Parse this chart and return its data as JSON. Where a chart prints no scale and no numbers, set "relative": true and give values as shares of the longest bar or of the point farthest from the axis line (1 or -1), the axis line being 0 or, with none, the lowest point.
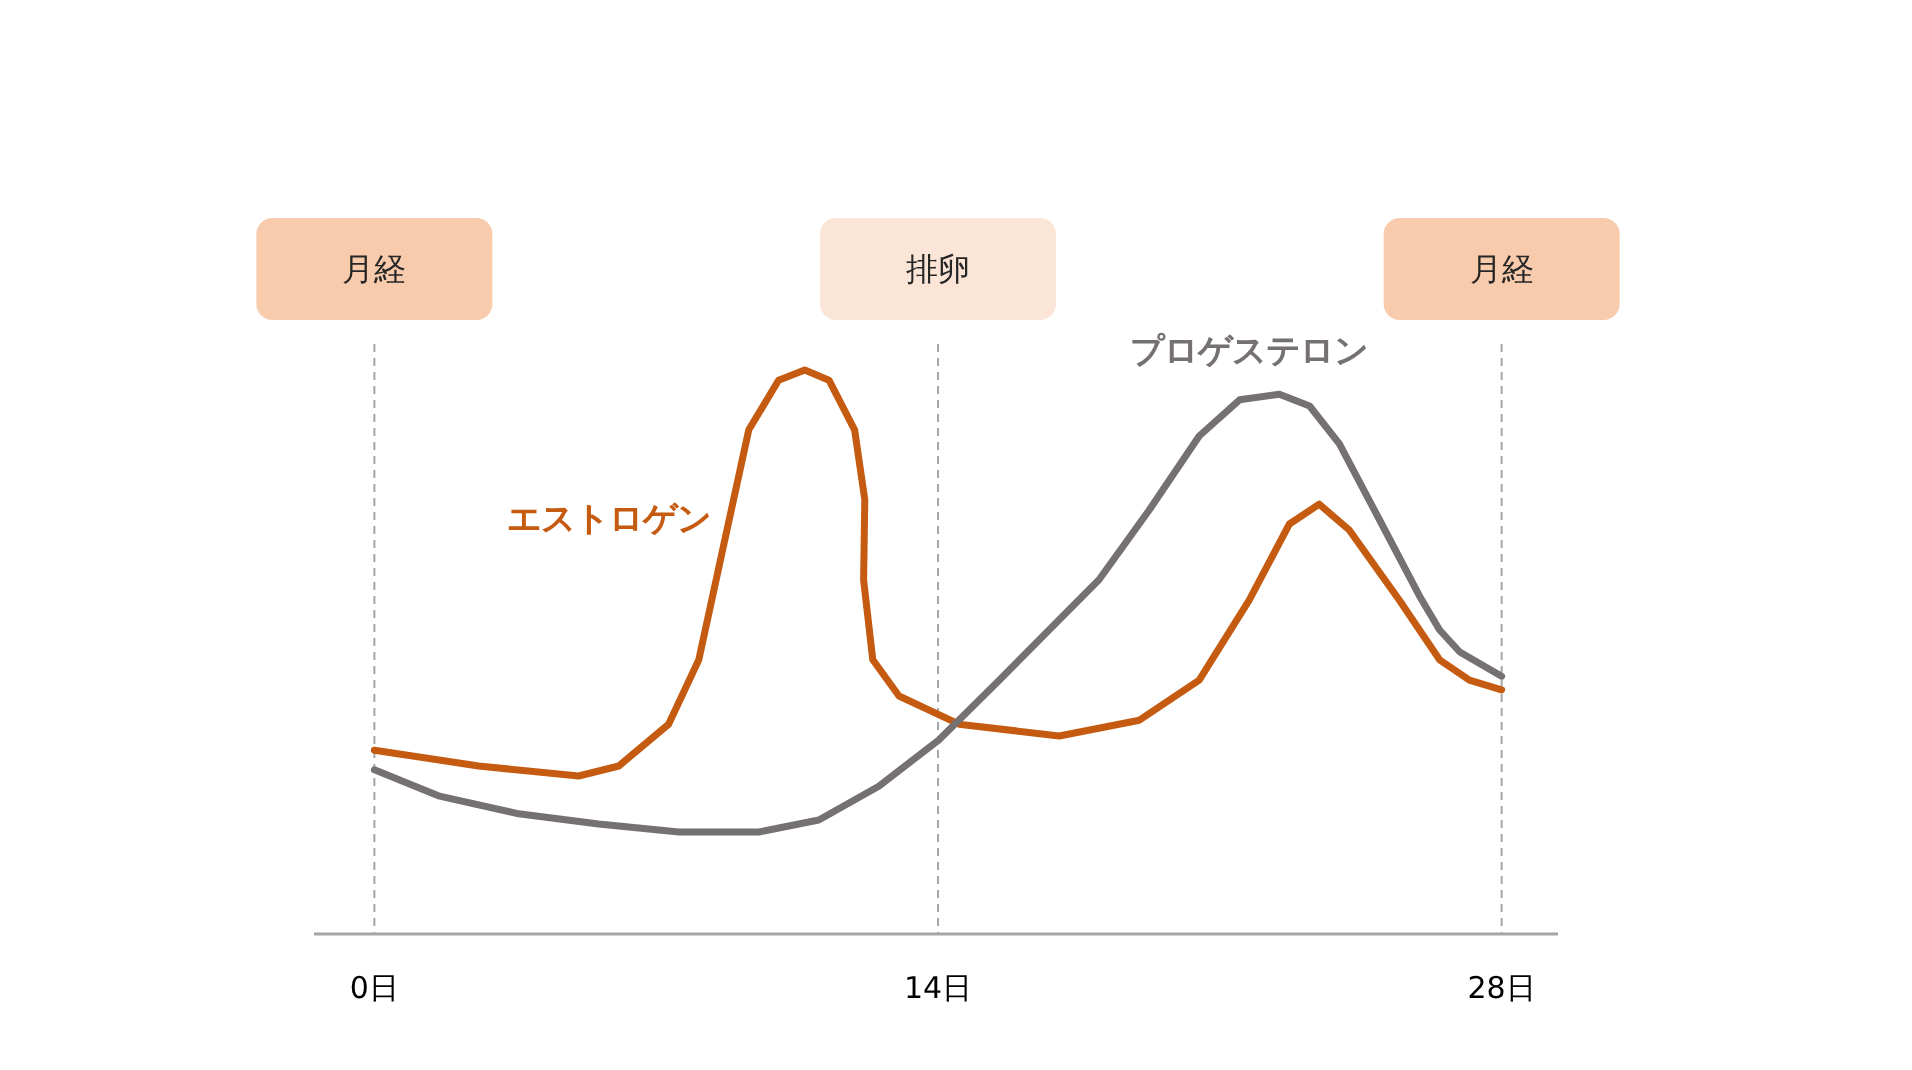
{
  "chart_data": {
    "type": "line",
    "relative": true,
    "line_style": "solid",
    "marker": "none",
    "xlim": [
      -1.5,
      29.4
    ],
    "xticks": [
      {
        "value": 0,
        "label": "0日"
      },
      {
        "value": 14,
        "label": "14日"
      },
      {
        "value": 28,
        "label": "28日"
      }
    ],
    "ref_lines": [
      {
        "axis": "x",
        "value": 0,
        "label": "月経",
        "color": "#a6a6a6",
        "line_style": "dashed"
      },
      {
        "axis": "x",
        "value": 14,
        "label": "排卵",
        "color": "#a6a6a6",
        "line_style": "dashed"
      },
      {
        "axis": "x",
        "value": 28,
        "label": "月経",
        "color": "#a6a6a6",
        "line_style": "dashed"
      }
    ],
    "series": [
      {
        "name": "エストロゲン",
        "color": "#c55a11",
        "x": [
          0,
          2.59,
          5.07,
          6.07,
          7.31,
          8.06,
          8.65,
          9.3,
          10.04,
          10.69,
          11.29,
          11.93,
          12.18,
          12.15,
          12.38,
          13.03,
          14.52,
          17.01,
          19.0,
          20.49,
          21.73,
          22.73,
          23.47,
          24.22,
          25.46,
          26.46,
          27.2,
          28
        ],
        "values": [
          0.326,
          0.298,
          0.28,
          0.298,
          0.372,
          0.486,
          0.681,
          0.894,
          0.982,
          1.0,
          0.982,
          0.894,
          0.77,
          0.628,
          0.486,
          0.422,
          0.372,
          0.351,
          0.379,
          0.45,
          0.592,
          0.727,
          0.762,
          0.716,
          0.592,
          0.486,
          0.45,
          0.433
        ]
      },
      {
        "name": "プロゲステロン",
        "color": "#767171",
        "x": [
          0,
          1.59,
          3.58,
          5.57,
          7.56,
          9.55,
          11.04,
          12.53,
          14.02,
          15.52,
          17.01,
          18.0,
          19.25,
          20.49,
          21.49,
          22.48,
          23.23,
          23.97,
          24.97,
          25.96,
          26.46,
          26.96,
          28
        ],
        "values": [
          0.291,
          0.245,
          0.213,
          0.195,
          0.181,
          0.181,
          0.202,
          0.262,
          0.344,
          0.45,
          0.557,
          0.628,
          0.752,
          0.883,
          0.947,
          0.957,
          0.936,
          0.869,
          0.734,
          0.599,
          0.539,
          0.5,
          0.457
        ]
      }
    ]
  }
}
